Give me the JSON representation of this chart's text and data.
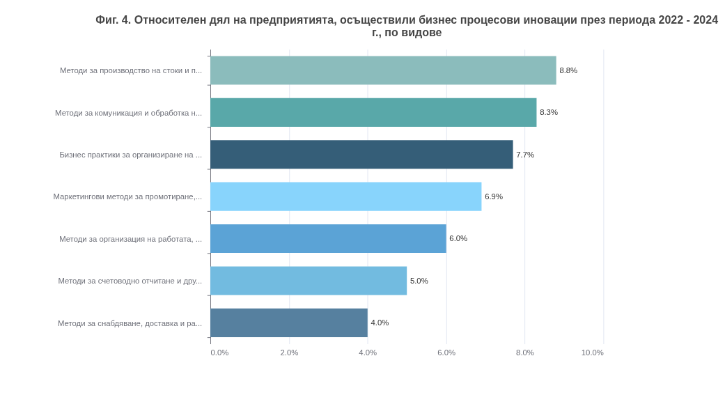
{
  "chart_data": {
    "type": "bar",
    "orientation": "horizontal",
    "title": "Фиг. 4. Относителен дял на предприятията, осъществили бизнес процесови иновации през периода 2022 - 2024 г., по видове",
    "categories": [
      "Методи за производство на стоки и п...",
      "Методи за комуникация и обработка н...",
      "Бизнес практики за организиране на ...",
      "Маркетингови методи за промотиране,...",
      "Методи за организация на работата, ...",
      "Методи за счетоводно отчитане и дру...",
      "Методи за снабдяване, доставка и ра..."
    ],
    "values": [
      8.8,
      8.3,
      7.7,
      6.9,
      6.0,
      5.0,
      4.0
    ],
    "value_labels": [
      "8.8%",
      "8.3%",
      "7.7%",
      "6.9%",
      "6.0%",
      "5.0%",
      "4.0%"
    ],
    "colors": [
      "#8bbcbc",
      "#59a8a9",
      "#355e78",
      "#88d4fc",
      "#5ba3d6",
      "#72bbe0",
      "#56809f"
    ],
    "xlim": [
      0,
      10
    ],
    "xticks": [
      {
        "value": 0,
        "label": "0.0%"
      },
      {
        "value": 2,
        "label": "2.0%"
      },
      {
        "value": 4,
        "label": "4.0%"
      },
      {
        "value": 6,
        "label": "6.0%"
      },
      {
        "value": 8,
        "label": "8.0%"
      },
      {
        "value": 10,
        "label": "10.0%"
      }
    ],
    "grid": "x"
  }
}
